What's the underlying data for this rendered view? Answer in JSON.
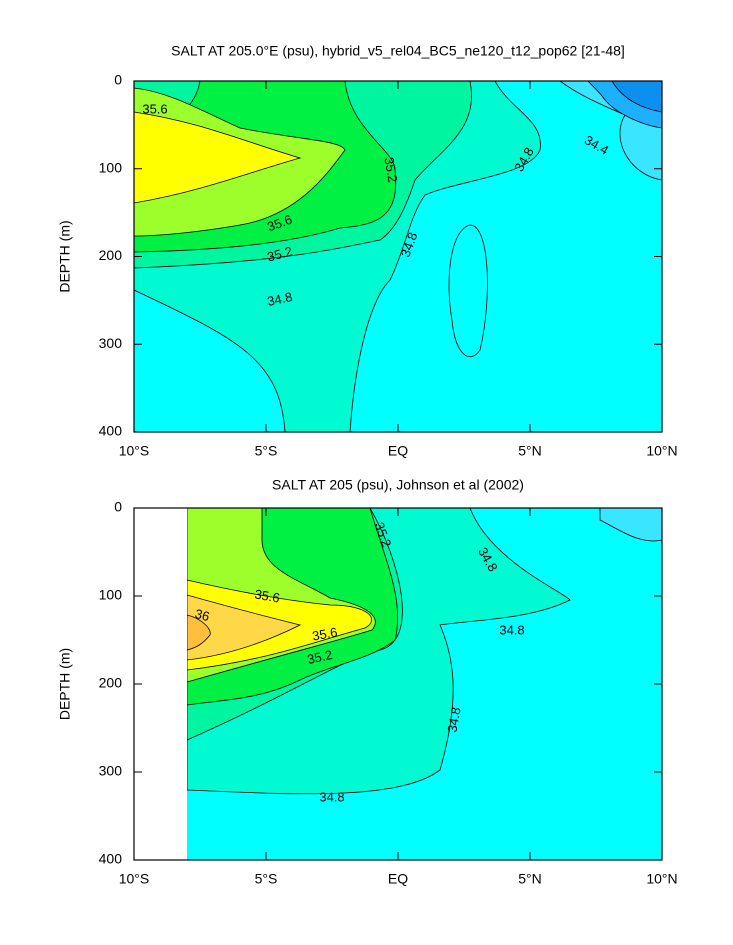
{
  "chart_data": [
    {
      "type": "contour",
      "title": "SALT AT 205.0°E (psu), hybrid_v5_rel04_BC5_ne120_t12_pop62 [21-48]",
      "ylabel": "DEPTH (m)",
      "xlim": [
        -10,
        10
      ],
      "xticks": [
        {
          "value": -10,
          "label": "10°S"
        },
        {
          "value": -5,
          "label": "5°S"
        },
        {
          "value": 0,
          "label": "EQ"
        },
        {
          "value": 5,
          "label": "5°N"
        },
        {
          "value": 10,
          "label": "10°N"
        }
      ],
      "ylim": [
        0,
        400
      ],
      "yticks": [
        0,
        100,
        200,
        300,
        400
      ],
      "y_inverted": true,
      "contour_labels": [
        35.6,
        35.6,
        35.2,
        34.8,
        35.2,
        34.8,
        34.8,
        34.4
      ]
    },
    {
      "type": "contour",
      "title": "SALT AT 205 (psu), Johnson et al (2002)",
      "ylabel": "DEPTH (m)",
      "xlim": [
        -10,
        10
      ],
      "xticks": [
        {
          "value": -10,
          "label": "10°S"
        },
        {
          "value": -5,
          "label": "5°S"
        },
        {
          "value": 0,
          "label": "EQ"
        },
        {
          "value": 5,
          "label": "5°N"
        },
        {
          "value": 10,
          "label": "10°N"
        }
      ],
      "ylim": [
        0,
        400
      ],
      "yticks": [
        0,
        100,
        200,
        300,
        400
      ],
      "y_inverted": true,
      "contour_labels": [
        35.2,
        34.8,
        35.6,
        36,
        35.6,
        35.2,
        34.8,
        34.8,
        34.8
      ]
    }
  ]
}
